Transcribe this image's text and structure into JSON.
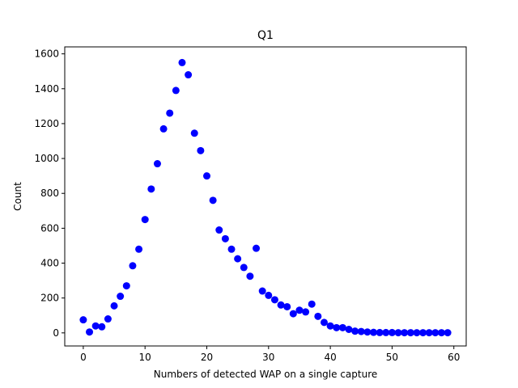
{
  "chart_data": {
    "type": "scatter",
    "title": "Q1",
    "xlabel": "Numbers of detected WAP on a single capture",
    "ylabel": "Count",
    "xlim": [
      -3,
      62
    ],
    "ylim": [
      -75,
      1640
    ],
    "xticks": [
      0,
      10,
      20,
      30,
      40,
      50,
      60
    ],
    "yticks": [
      0,
      200,
      400,
      600,
      800,
      1000,
      1200,
      1400,
      1600
    ],
    "grid": false,
    "marker_color": "#0000ff",
    "x": [
      0,
      1,
      2,
      3,
      4,
      5,
      6,
      7,
      8,
      9,
      10,
      11,
      12,
      13,
      14,
      15,
      16,
      17,
      18,
      19,
      20,
      21,
      22,
      23,
      24,
      25,
      26,
      27,
      28,
      29,
      30,
      31,
      32,
      33,
      34,
      35,
      36,
      37,
      38,
      39,
      40,
      41,
      42,
      43,
      44,
      45,
      46,
      47,
      48,
      49,
      50,
      51,
      52,
      53,
      54,
      55,
      56,
      57,
      58,
      59
    ],
    "y": [
      75,
      5,
      40,
      35,
      80,
      155,
      210,
      270,
      385,
      480,
      650,
      825,
      970,
      1170,
      1260,
      1390,
      1550,
      1480,
      1145,
      1045,
      900,
      760,
      590,
      540,
      480,
      425,
      375,
      325,
      485,
      240,
      215,
      190,
      160,
      150,
      110,
      130,
      120,
      165,
      95,
      60,
      40,
      30,
      30,
      20,
      10,
      8,
      5,
      3,
      2,
      2,
      2,
      1,
      1,
      1,
      1,
      1,
      1,
      1,
      1,
      1
    ]
  }
}
